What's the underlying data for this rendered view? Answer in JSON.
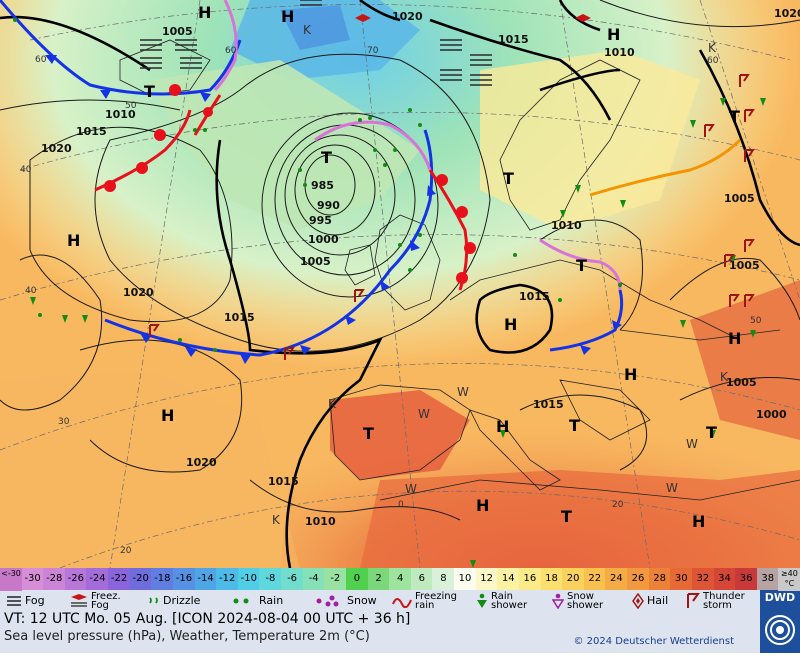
{
  "map": {
    "pressure_labels": [
      "1005",
      "1020",
      "1015",
      "1010",
      "1015",
      "1020",
      "985",
      "990",
      "995",
      "1000",
      "1005",
      "1010",
      "1015",
      "1020",
      "1015",
      "1015",
      "1010",
      "1015",
      "1020",
      "1010",
      "1005",
      "1005",
      "1005",
      "1000",
      "1020"
    ],
    "centers": [
      {
        "kind": "H"
      },
      {
        "kind": "H"
      },
      {
        "kind": "H"
      },
      {
        "kind": "H"
      },
      {
        "kind": "H"
      },
      {
        "kind": "H"
      },
      {
        "kind": "H"
      },
      {
        "kind": "H"
      },
      {
        "kind": "H"
      },
      {
        "kind": "H"
      },
      {
        "kind": "H"
      },
      {
        "kind": "T"
      },
      {
        "kind": "T"
      },
      {
        "kind": "T"
      },
      {
        "kind": "T"
      },
      {
        "kind": "T"
      },
      {
        "kind": "T"
      },
      {
        "kind": "T"
      },
      {
        "kind": "T"
      },
      {
        "kind": "T"
      }
    ],
    "grid_labels": [
      "60",
      "70",
      "60",
      "50",
      "40",
      "30",
      "20",
      "0",
      "20",
      "40",
      "50",
      "60",
      "K",
      "K",
      "K",
      "W",
      "W",
      "W",
      "W",
      "W",
      "K",
      "K"
    ],
    "colors": {
      "warm_front": "#e8101a",
      "cold_front": "#1433e6",
      "occlusion": "#d873d8",
      "trough": "#f59300",
      "rain_symbol": "#148c14",
      "thunder_symbol": "#a01414"
    }
  },
  "legend": {
    "temperature_scale": [
      "<-30",
      "-30",
      "-28",
      "-26",
      "-24",
      "-22",
      "-20",
      "-18",
      "-16",
      "-14",
      "-12",
      "-10",
      "-8",
      "-6",
      "-4",
      "-2",
      "0",
      "2",
      "4",
      "6",
      "8",
      "10",
      "12",
      "14",
      "16",
      "18",
      "20",
      "22",
      "24",
      "26",
      "28",
      "30",
      "32",
      "34",
      "36",
      "38",
      "≥40 °C"
    ],
    "temperature_colors": [
      "#c878c8",
      "#d68fd6",
      "#cc84d6",
      "#b777d9",
      "#a46bdb",
      "#8a64db",
      "#6f6cdc",
      "#5f7ee0",
      "#5691e3",
      "#4ea6e6",
      "#4cbbe8",
      "#52cde6",
      "#5fd8dd",
      "#72ddcc",
      "#86e0b8",
      "#98e2a4",
      "#4fd04f",
      "#7ad87a",
      "#9ee39e",
      "#bfeabf",
      "#d9f1d9",
      "#fbfbf0",
      "#fbf7c8",
      "#fbf2a4",
      "#fbeb88",
      "#fbe070",
      "#fbd15e",
      "#f9c04f",
      "#f6ac46",
      "#f2993f",
      "#ec8138",
      "#e56a36",
      "#dd5535",
      "#d44636",
      "#c83a3a",
      "#b7a3a3",
      "#c9c9c9"
    ],
    "symbols": [
      {
        "name": "fog",
        "label": "Fog"
      },
      {
        "name": "freezing-fog",
        "label": "Freez. Fog"
      },
      {
        "name": "drizzle",
        "label": "Drizzle"
      },
      {
        "name": "rain",
        "label": "Rain"
      },
      {
        "name": "snow",
        "label": "Snow"
      },
      {
        "name": "freezing-rain",
        "label": "Freezing rain"
      },
      {
        "name": "rain-shower",
        "label": "Rain shower"
      },
      {
        "name": "snow-shower",
        "label": "Snow shower"
      },
      {
        "name": "hail",
        "label": "Hail"
      },
      {
        "name": "thunderstorm",
        "label": "Thunder storm"
      }
    ]
  },
  "footer": {
    "valid_time": "VT: 12 UTC Mo.  05 Aug. [ICON 2024-08-04  00 UTC + 36 h]",
    "subtitle": "Sea level pressure (hPa), Weather, Temperature 2m (°C)",
    "copyright": "© 2024 Deutscher Wetterdienst",
    "logo_text": "DWD"
  }
}
